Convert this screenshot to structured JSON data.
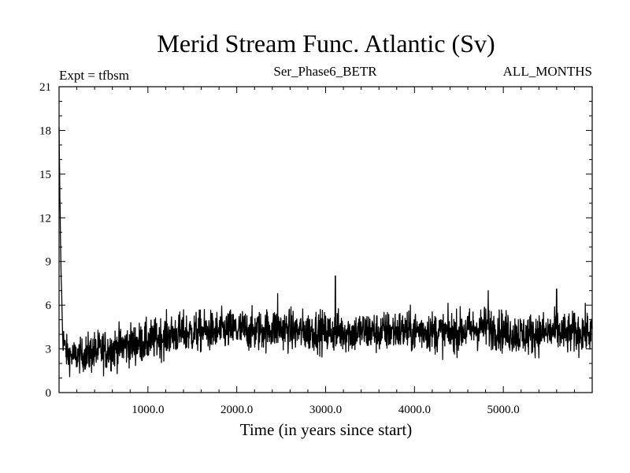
{
  "chart_data": {
    "type": "line",
    "title": "Merid Stream Func. Atlantic (Sv)",
    "subtitle_left": "Expt = tfbsm",
    "subtitle_center": "Ser_Phase6_BETR",
    "subtitle_right": "ALL_MONTHS",
    "xlabel": "Time (in years since start)",
    "ylabel": "",
    "xlim": [
      0,
      6000
    ],
    "ylim": [
      0,
      21
    ],
    "x_ticks": [
      1000,
      2000,
      3000,
      4000,
      5000
    ],
    "x_tick_labels": [
      "1000.0",
      "2000.0",
      "3000.0",
      "4000.0",
      "5000.0"
    ],
    "y_ticks": [
      0,
      3,
      6,
      9,
      12,
      15,
      18,
      21
    ],
    "y_tick_labels": [
      "0",
      "3",
      "6",
      "9",
      "12",
      "15",
      "18",
      "21"
    ],
    "grid": false,
    "line_color": "#000000",
    "series": [
      {
        "x": [
          0,
          10,
          20,
          30,
          40,
          60,
          80,
          100,
          150,
          200,
          300,
          400,
          500,
          600,
          700,
          800,
          900,
          1000,
          1100,
          1200,
          1300,
          1400,
          1500,
          1600,
          1700,
          1800,
          1900,
          2000,
          2100,
          2200,
          2300,
          2400,
          2500,
          2600,
          2700,
          2800,
          2900,
          3000,
          3100,
          3200,
          3300,
          3400,
          3500,
          3600,
          3700,
          3800,
          3900,
          4000,
          4100,
          4200,
          4300,
          4400,
          4500,
          4600,
          4700,
          4800,
          4900,
          5000,
          5100,
          5200,
          5300,
          5400,
          5500,
          5600,
          5700,
          5800,
          5900,
          6000
        ],
        "y": [
          18.0,
          13.0,
          9.0,
          6.5,
          4.0,
          3.2,
          2.8,
          2.6,
          2.5,
          2.5,
          2.6,
          2.8,
          2.9,
          3.0,
          3.2,
          3.3,
          3.4,
          3.5,
          3.7,
          3.9,
          4.0,
          4.1,
          4.1,
          4.2,
          4.2,
          4.2,
          4.3,
          4.3,
          4.3,
          4.2,
          4.3,
          4.4,
          4.4,
          4.3,
          4.2,
          4.2,
          4.3,
          4.1,
          4.2,
          4.2,
          4.1,
          4.2,
          4.2,
          4.1,
          4.2,
          4.3,
          4.2,
          4.2,
          4.3,
          4.2,
          4.1,
          4.1,
          4.2,
          4.3,
          4.4,
          4.5,
          4.4,
          4.2,
          4.1,
          4.0,
          4.0,
          4.1,
          4.1,
          4.2,
          4.0,
          4.1,
          4.2,
          4.1
        ],
        "noise_amplitude": 1.0,
        "peaks": [
          [
            3110,
            8.0
          ],
          [
            4830,
            7.0
          ],
          [
            5600,
            7.1
          ],
          [
            2460,
            6.8
          ]
        ]
      }
    ]
  }
}
